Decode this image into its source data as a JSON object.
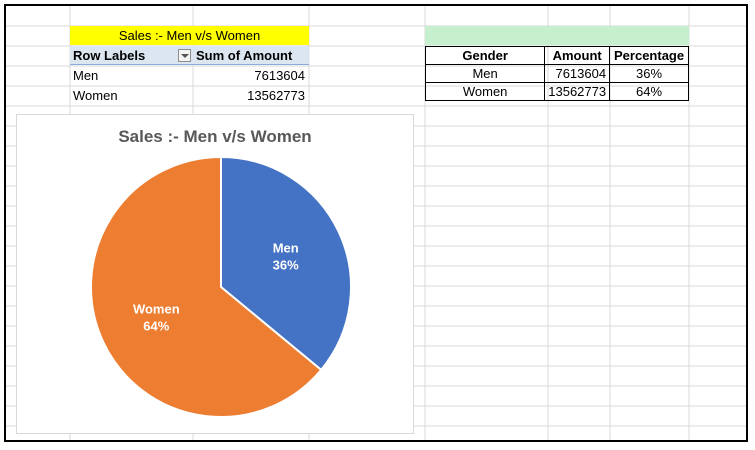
{
  "pivot": {
    "title": "Sales :- Men v/s Women",
    "headers": [
      "Row Labels",
      "Sum of Amount"
    ],
    "rows": [
      {
        "label": "Men",
        "amount": "7613604"
      },
      {
        "label": "Women",
        "amount": "13562773"
      }
    ]
  },
  "summary_table": {
    "headers": [
      "Gender",
      "Amount",
      "Percentage"
    ],
    "rows": [
      {
        "gender": "Men",
        "amount": "7613604",
        "percentage": "36%"
      },
      {
        "gender": "Women",
        "amount": "13562773",
        "percentage": "64%"
      }
    ]
  },
  "colors": {
    "men": "#4472c4",
    "women": "#ed7d31",
    "title_highlight": "#ffff00",
    "green_band": "#c6efce"
  },
  "chart_data": {
    "type": "pie",
    "title": "Sales :- Men v/s Women",
    "categories": [
      "Men",
      "Women"
    ],
    "values": [
      36,
      64
    ],
    "labels": [
      "Men\n36%",
      "Women\n64%"
    ]
  }
}
